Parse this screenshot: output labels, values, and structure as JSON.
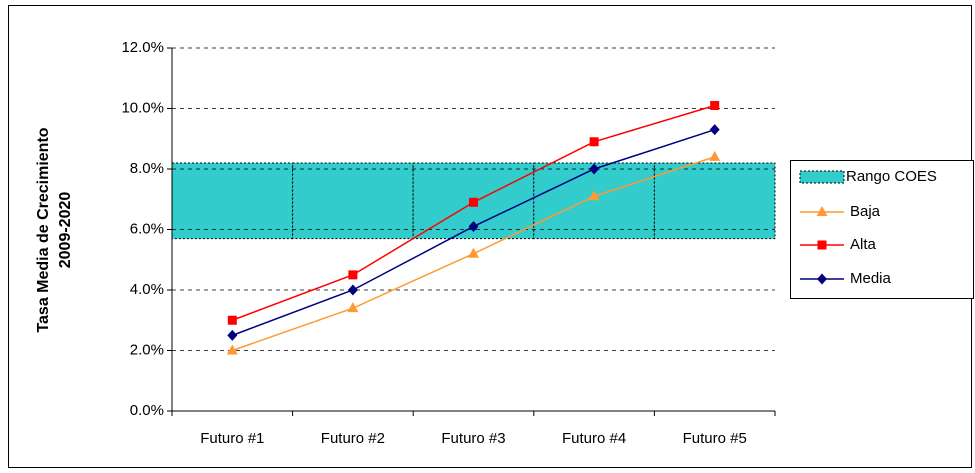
{
  "chart_data": {
    "type": "line",
    "ylabel": [
      "Tasa Media de Crecimiento",
      "2009-2020"
    ],
    "categories": [
      "Futuro #1",
      "Futuro #2",
      "Futuro #3",
      "Futuro #4",
      "Futuro #5"
    ],
    "ylim": [
      0,
      12
    ],
    "yticks": [
      {
        "value": 0,
        "label": "0.0%"
      },
      {
        "value": 2,
        "label": "2.0%"
      },
      {
        "value": 4,
        "label": "4.0%"
      },
      {
        "value": 6,
        "label": "6.0%"
      },
      {
        "value": 8,
        "label": "8.0%"
      },
      {
        "value": 10,
        "label": "10.0%"
      },
      {
        "value": 12,
        "label": "12.0%"
      }
    ],
    "grid": true,
    "legend": "right",
    "range": {
      "name": "Rango COES",
      "color": "#33cccc",
      "low": [
        5.7,
        5.7,
        5.7,
        5.7,
        5.7
      ],
      "high": [
        8.2,
        8.2,
        8.2,
        8.2,
        8.2
      ]
    },
    "series": [
      {
        "name": "Baja",
        "color": "#ff9933",
        "marker": "triangle",
        "values": [
          2.0,
          3.4,
          5.2,
          7.1,
          8.4
        ]
      },
      {
        "name": "Alta",
        "color": "#ff0000",
        "marker": "square",
        "values": [
          3.0,
          4.5,
          6.9,
          8.9,
          10.1
        ]
      },
      {
        "name": "Media",
        "color": "#000080",
        "marker": "diamond",
        "values": [
          2.5,
          4.0,
          6.1,
          8.0,
          9.3
        ]
      }
    ]
  }
}
